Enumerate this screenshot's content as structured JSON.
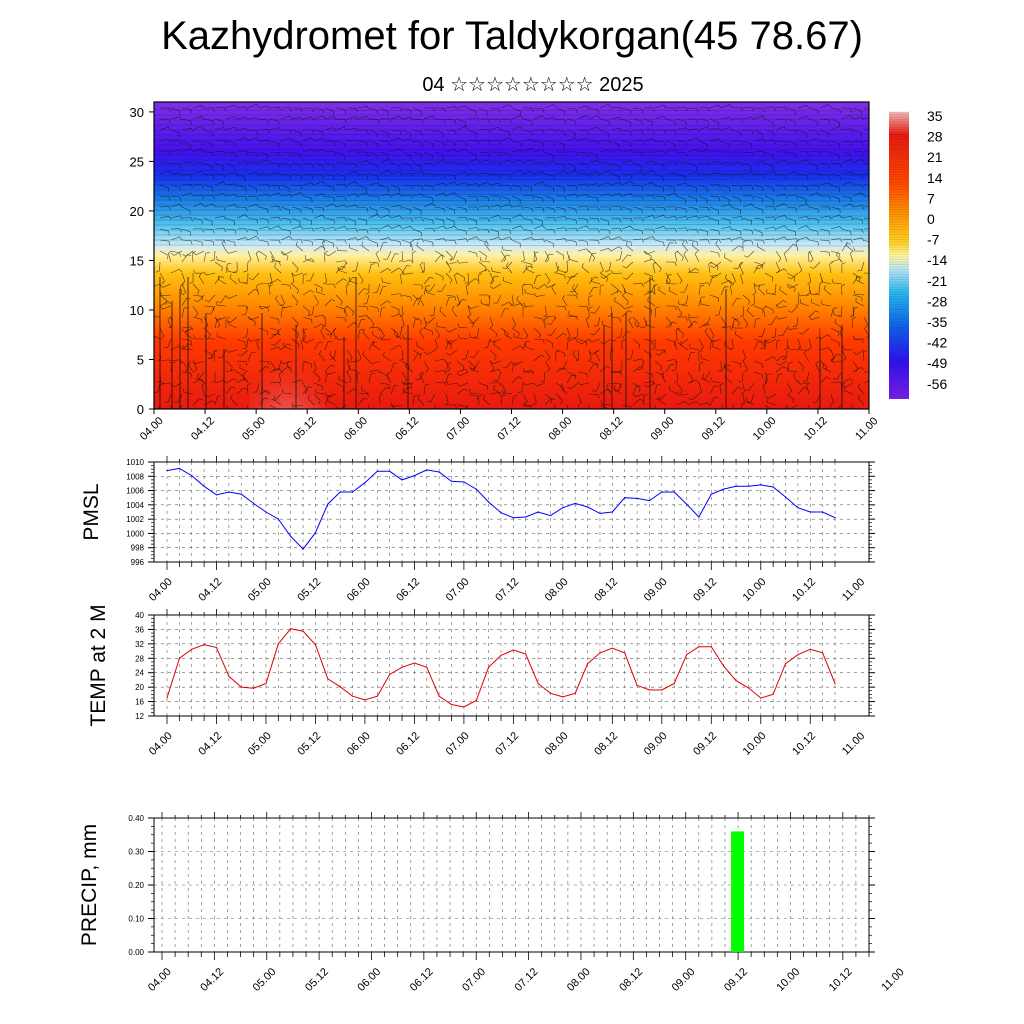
{
  "title": "Kazhydromet for Taldykorgan(45 78.67)",
  "subtitle": "04 ☆☆☆☆☆☆☆☆ 2025",
  "chart_data": [
    {
      "type": "heatmap",
      "name": "vertical-section",
      "ylim": [
        0,
        31
      ],
      "y_ticks": [
        "0",
        "5",
        "10",
        "15",
        "20",
        "25",
        "30"
      ],
      "x_ticks": [
        "04.00",
        "04.12",
        "05.00",
        "05.12",
        "06.00",
        "06.12",
        "07.00",
        "07.12",
        "08.00",
        "08.12",
        "09.00",
        "09.12",
        "10.00",
        "10.12",
        "11.00"
      ],
      "colorbar_labels": [
        "35",
        "28",
        "21",
        "14",
        "7",
        "0",
        "-7",
        "-14",
        "-21",
        "-28",
        "-35",
        "-42",
        "-49",
        "-56"
      ],
      "colors": [
        "#f2b8b8",
        "#e81a10",
        "#ff5a00",
        "#ffa000",
        "#ffd020",
        "#fff8a0",
        "#b8e4f4",
        "#28b8f0",
        "#1060e8",
        "#3010f0",
        "#7a20e8"
      ]
    },
    {
      "type": "line",
      "ylabel": "PMSL",
      "ylim": [
        996,
        1010
      ],
      "y_ticks": [
        "996",
        "998",
        "1000",
        "1002",
        "1004",
        "1006",
        "1008",
        "1010"
      ],
      "x_ticks": [
        "04.00",
        "04.12",
        "05.00",
        "05.12",
        "06.00",
        "06.12",
        "07.00",
        "07.12",
        "08.00",
        "08.12",
        "09.00",
        "09.12",
        "10.00",
        "10.12",
        "11.00"
      ],
      "series": [
        {
          "color": "#0000ff",
          "x": [
            0,
            3,
            6,
            9,
            12,
            15,
            18,
            21,
            24,
            27,
            30,
            33,
            36,
            39,
            42,
            45,
            48,
            51,
            54,
            57,
            60,
            63,
            66,
            69,
            72,
            75,
            78,
            81,
            84,
            87,
            90,
            93,
            96,
            99,
            102,
            105,
            108,
            111,
            114,
            117,
            120,
            123,
            126,
            129,
            132,
            135,
            138,
            141,
            144,
            147,
            150,
            153,
            156,
            159,
            162
          ],
          "values": [
            1008.8,
            1009.1,
            1008.1,
            1006.6,
            1005.4,
            1005.8,
            1005.5,
            1004.2,
            1003.0,
            1002.0,
            999.6,
            997.8,
            1000.1,
            1004.1,
            1005.8,
            1005.8,
            1007.1,
            1008.7,
            1008.7,
            1007.5,
            1008.1,
            1008.9,
            1008.6,
            1007.3,
            1007.2,
            1006.2,
            1004.4,
            1002.9,
            1002.2,
            1002.3,
            1003.0,
            1002.5,
            1003.6,
            1004.2,
            1003.7,
            1002.8,
            1003.0,
            1005.0,
            1004.9,
            1004.6,
            1005.8,
            1005.8,
            1004.1,
            1002.3,
            1005.5,
            1006.2,
            1006.6,
            1006.6,
            1006.8,
            1006.5,
            1005.1,
            1003.6,
            1003.0,
            1003.0,
            1002.2
          ]
        }
      ]
    },
    {
      "type": "line",
      "ylabel": "TEMP at 2 M",
      "ylim": [
        12,
        40
      ],
      "y_ticks": [
        "12",
        "16",
        "20",
        "24",
        "28",
        "32",
        "36",
        "40"
      ],
      "x_ticks": [
        "04.00",
        "04.12",
        "05.00",
        "05.12",
        "06.00",
        "06.12",
        "07.00",
        "07.12",
        "08.00",
        "08.12",
        "09.00",
        "09.12",
        "10.00",
        "10.12",
        "11.00"
      ],
      "series": [
        {
          "color": "#e00000",
          "x": [
            0,
            3,
            6,
            9,
            12,
            15,
            18,
            21,
            24,
            27,
            30,
            33,
            36,
            39,
            42,
            45,
            48,
            51,
            54,
            57,
            60,
            63,
            66,
            69,
            72,
            75,
            78,
            81,
            84,
            87,
            90,
            93,
            96,
            99,
            102,
            105,
            108,
            111,
            114,
            117,
            120,
            123,
            126,
            129,
            132,
            135,
            138,
            141,
            144,
            147,
            150,
            153,
            156,
            159,
            162
          ],
          "values": [
            17,
            28,
            30.5,
            31.8,
            31,
            23,
            20,
            19.7,
            21,
            32,
            36.2,
            35.5,
            31.8,
            22.3,
            20.1,
            17.5,
            16.5,
            17.5,
            23.5,
            25.5,
            26.7,
            25.5,
            17.5,
            15.2,
            14.5,
            16.3,
            25.5,
            28.8,
            30.3,
            29.2,
            21,
            18.3,
            17.3,
            18.3,
            26.5,
            29.5,
            30.8,
            29.5,
            20.5,
            19.2,
            19.2,
            21,
            29,
            31.2,
            31.2,
            25.8,
            21.8,
            19.8,
            17,
            18,
            26.5,
            29,
            30.5,
            29.5,
            21
          ]
        }
      ]
    },
    {
      "type": "bar",
      "ylabel": "PRECIP, mm",
      "ylim": [
        0,
        0.4
      ],
      "y_ticks": [
        "0.00",
        "0.10",
        "0.20",
        "0.30",
        "0.40"
      ],
      "x_ticks": [
        "04.00",
        "04.12",
        "05.00",
        "05.12",
        "06.00",
        "06.12",
        "07.00",
        "07.12",
        "08.00",
        "08.12",
        "09.00",
        "09.12",
        "10.00",
        "10.12",
        "11.00"
      ],
      "bars": [
        {
          "x": 132,
          "value": 0.36,
          "color": "#00ff00"
        }
      ]
    }
  ]
}
